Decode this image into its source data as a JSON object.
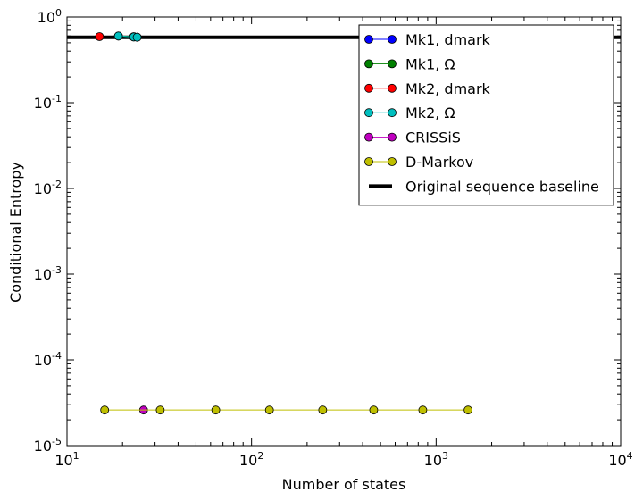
{
  "chart_data": {
    "type": "line",
    "xlabel": "Number of states",
    "ylabel": "Conditional Entropy",
    "x_scale": "log",
    "y_scale": "log",
    "xlim": [
      10,
      10000
    ],
    "ylim": [
      1e-05,
      1
    ],
    "x_ticks": [
      {
        "value": 10,
        "base": "10",
        "exp": "1"
      },
      {
        "value": 100,
        "base": "10",
        "exp": "2"
      },
      {
        "value": 1000,
        "base": "10",
        "exp": "3"
      },
      {
        "value": 10000,
        "base": "10",
        "exp": "4"
      }
    ],
    "y_ticks": [
      {
        "value": 1e-05,
        "base": "10",
        "exp": "-5"
      },
      {
        "value": 0.0001,
        "base": "10",
        "exp": "-4"
      },
      {
        "value": 0.001,
        "base": "10",
        "exp": "-3"
      },
      {
        "value": 0.01,
        "base": "10",
        "exp": "-2"
      },
      {
        "value": 0.1,
        "base": "10",
        "exp": "-1"
      },
      {
        "value": 1,
        "base": "10",
        "exp": "0"
      }
    ],
    "grid": false,
    "legend_position": "top-right",
    "series": [
      {
        "name": "Mk1, dmark",
        "color": "#0000ff",
        "marker": "circle",
        "points": [
          [
            23,
            0.585
          ],
          [
            24,
            0.58
          ]
        ]
      },
      {
        "name": "Mk1, Ω",
        "color": "#008000",
        "marker": "circle",
        "points": [
          [
            19,
            0.6
          ],
          [
            23,
            0.59
          ]
        ]
      },
      {
        "name": "Mk2, dmark",
        "color": "#ff0000",
        "marker": "circle",
        "points": [
          [
            15,
            0.59
          ]
        ]
      },
      {
        "name": "Mk2, Ω",
        "color": "#00bfbf",
        "marker": "circle",
        "points": [
          [
            19,
            0.6
          ],
          [
            23,
            0.585
          ],
          [
            24,
            0.58
          ]
        ]
      },
      {
        "name": "CRISSiS",
        "color": "#bf00bf",
        "marker": "circle",
        "points": [
          [
            26,
            2.6e-05
          ]
        ]
      },
      {
        "name": "D-Markov",
        "color": "#bfbf00",
        "marker": "circle",
        "points": [
          [
            16,
            2.6e-05
          ],
          [
            32,
            2.6e-05
          ],
          [
            64,
            2.6e-05
          ],
          [
            125,
            2.6e-05
          ],
          [
            243,
            2.6e-05
          ],
          [
            459,
            2.6e-05
          ],
          [
            847,
            2.6e-05
          ],
          [
            1490,
            2.6e-05
          ]
        ]
      }
    ],
    "baseline": {
      "name": "Original sequence baseline",
      "color": "#000000",
      "y": 0.58
    }
  }
}
